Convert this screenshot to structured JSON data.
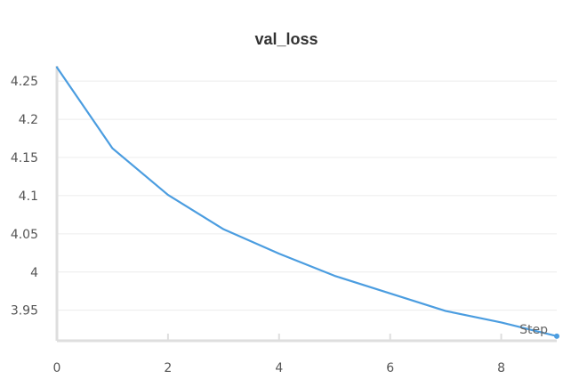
{
  "chart_data": {
    "type": "line",
    "title": "val_loss",
    "xlabel": "Step",
    "ylabel": "",
    "xlim": [
      0,
      9
    ],
    "ylim": [
      3.91,
      4.27
    ],
    "xticks": [
      0,
      2,
      4,
      6,
      8
    ],
    "xtick_labels": [
      "0",
      "2",
      "4",
      "6",
      "8"
    ],
    "yticks": [
      3.95,
      4.0,
      4.05,
      4.1,
      4.15,
      4.2,
      4.25
    ],
    "ytick_labels": [
      "3.95",
      "4",
      "4.05",
      "4.1",
      "4.15",
      "4.2",
      "4.25"
    ],
    "grid": true,
    "legend": "none",
    "series": [
      {
        "color": "#4b9de0",
        "x": [
          0,
          1,
          2,
          3,
          4,
          5,
          6,
          7,
          8,
          9
        ],
        "values": [
          4.268,
          4.162,
          4.101,
          4.056,
          4.024,
          3.995,
          3.972,
          3.949,
          3.934,
          3.916
        ]
      }
    ]
  }
}
